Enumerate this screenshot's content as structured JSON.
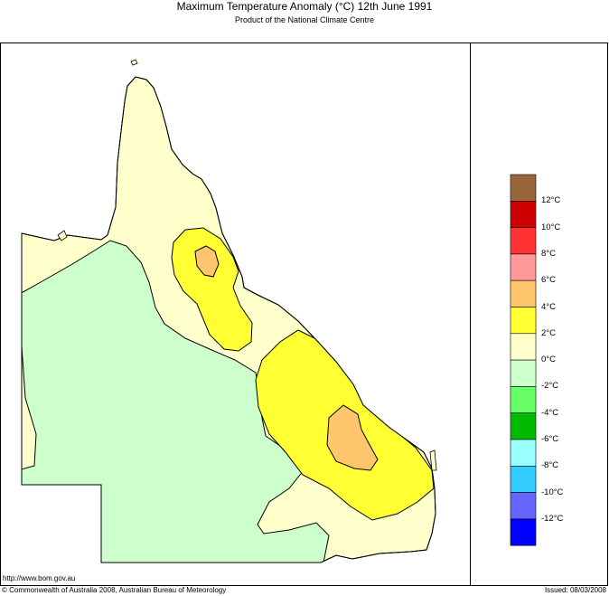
{
  "header": {
    "title": "Maximum Temperature Anomaly (°C)  12th June 1991",
    "subtitle": "Product of the National Climate Centre"
  },
  "legend": {
    "items": [
      {
        "label": "12°C",
        "color": "#99663a"
      },
      {
        "label": "10°C",
        "color": "#cc0000"
      },
      {
        "label": "8°C",
        "color": "#ff3333"
      },
      {
        "label": "6°C",
        "color": "#ff9999"
      },
      {
        "label": "4°C",
        "color": "#ffc66e"
      },
      {
        "label": "2°C",
        "color": "#ffff33"
      },
      {
        "label": "0°C",
        "color": "#ffffcc"
      },
      {
        "label": "-2°C",
        "color": "#ccffcc"
      },
      {
        "label": "-4°C",
        "color": "#66ff66"
      },
      {
        "label": "-6°C",
        "color": "#00bb00"
      },
      {
        "label": "-8°C",
        "color": "#99ffff"
      },
      {
        "label": "-10°C",
        "color": "#33ccff"
      },
      {
        "label": "-12°C",
        "color": "#6666ff"
      },
      {
        "label": "",
        "color": "#0000ff"
      }
    ]
  },
  "footer": {
    "url": "http://www.bom.gov.au",
    "copyright": "© Commonwealth of Australia 2008, Australian Bureau of Meteorology",
    "issued": "Issued: 08/03/2008"
  }
}
